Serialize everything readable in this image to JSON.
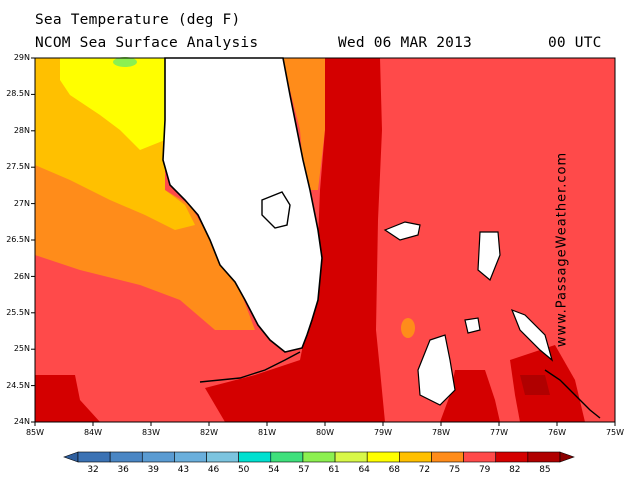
{
  "header": {
    "line1": "Sea Temperature (deg F)",
    "line2": "NCOM Sea Surface Analysis",
    "date": "Wed 06 MAR 2013",
    "time": "00 UTC"
  },
  "watermark": "www.PassageWeather.com",
  "map": {
    "lat_labels": [
      "29N",
      "28.5N",
      "28N",
      "27.5N",
      "27N",
      "26.5N",
      "26N",
      "25.5N",
      "25N",
      "24.5N",
      "24N"
    ],
    "lon_labels": [
      "85W",
      "84W",
      "83W",
      "82W",
      "81W",
      "80W",
      "79W",
      "78W",
      "77W",
      "76W",
      "75W"
    ],
    "lat_range": [
      24,
      29
    ],
    "lon_range": [
      -85,
      -75
    ]
  },
  "colorbar": {
    "ticks": [
      "32",
      "36",
      "39",
      "43",
      "46",
      "50",
      "54",
      "57",
      "61",
      "64",
      "68",
      "72",
      "75",
      "79",
      "82",
      "85"
    ],
    "colors": [
      "#2f5f9e",
      "#3b72b4",
      "#4a86c4",
      "#5a9bd2",
      "#6aafdc",
      "#7cc4df",
      "#00e0d0",
      "#3fe07c",
      "#8cf050",
      "#d8f848",
      "#ffff00",
      "#ffc000",
      "#ff8c1a",
      "#ff4a4a",
      "#d40000",
      "#b00000",
      "#8a0000"
    ]
  },
  "colors": {
    "land": "#ffffff",
    "coast": "#000000",
    "sst_64": "#ffff00",
    "sst_68": "#ffc000",
    "sst_72": "#ff8c1a",
    "sst_75": "#ff4a4a",
    "sst_79": "#d40000"
  }
}
